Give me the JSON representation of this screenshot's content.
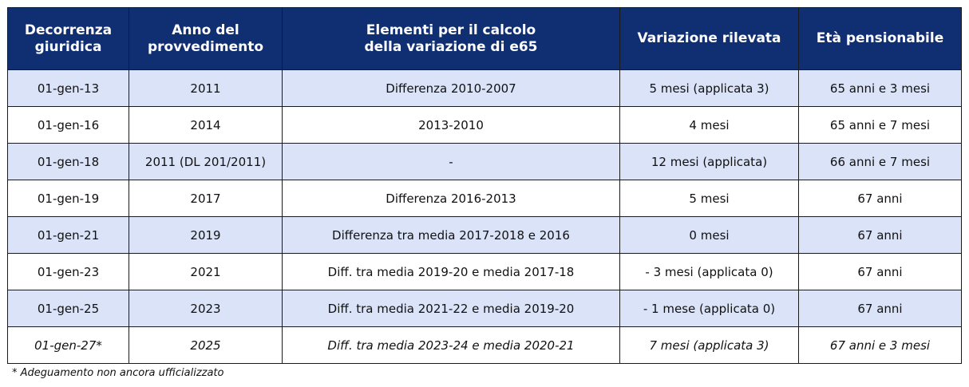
{
  "table": {
    "headers": [
      [
        "Decorrenza",
        "giuridica"
      ],
      [
        "Anno del",
        "provvedimento"
      ],
      [
        "Elementi per il calcolo",
        "della variazione di e65"
      ],
      [
        "Variazione rilevata"
      ],
      [
        "Età pensionabile"
      ]
    ],
    "rows": [
      [
        "01-gen-13",
        "2011",
        "Differenza 2010-2007",
        "5 mesi (applicata 3)",
        "65 anni e 3 mesi"
      ],
      [
        "01-gen-16",
        "2014",
        "2013-2010",
        "4 mesi",
        "65 anni e 7 mesi"
      ],
      [
        "01-gen-18",
        "2011 (DL 201/2011)",
        "-",
        "12 mesi (applicata)",
        "66 anni e 7 mesi"
      ],
      [
        "01-gen-19",
        "2017",
        "Differenza 2016-2013",
        "5 mesi",
        "67 anni"
      ],
      [
        "01-gen-21",
        "2019",
        "Differenza tra media 2017-2018 e 2016",
        "0 mesi",
        "67 anni"
      ],
      [
        "01-gen-23",
        "2021",
        "Diff. tra media 2019-20 e media 2017-18",
        "- 3 mesi (applicata 0)",
        "67 anni"
      ],
      [
        "01-gen-25",
        "2023",
        "Diff. tra media 2021-22 e media 2019-20",
        "- 1 mese (applicata 0)",
        "67 anni"
      ],
      [
        "01-gen-27*",
        "2025",
        "Diff. tra media 2023-24 e media 2020-21",
        "7 mesi (applicata 3)",
        "67 anni e 3 mesi"
      ]
    ]
  },
  "footnote": "* Adeguamento non ancora ufficializzato",
  "colors": {
    "header_bg": "#0f2f72",
    "alt_row_bg": "#dae3f7"
  }
}
